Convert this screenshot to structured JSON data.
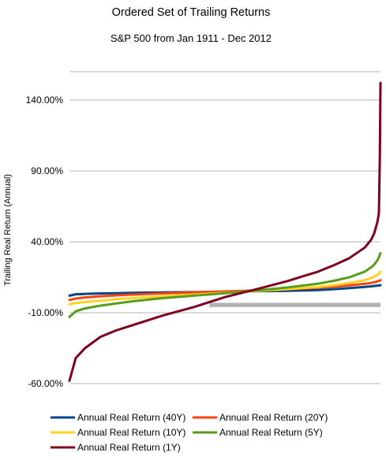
{
  "chart_data": {
    "type": "line",
    "title": "Ordered Set of Trailing Returns",
    "subtitle": "S&P 500 from Jan 1911 - Dec 2012",
    "xlabel": "",
    "ylabel": "Trailing Real Return (Annual)",
    "ylim": [
      -60,
      160
    ],
    "yticks": [
      -60,
      -10,
      40,
      90,
      140
    ],
    "ytick_labels": [
      "-60.00%",
      "-10.00%",
      "40.00%",
      "90.00%",
      "140.00%"
    ],
    "grid": true,
    "legend_position": "bottom",
    "highlight_band": [
      -6,
      -3
    ],
    "band_color": "#b3b3b3",
    "x": [
      0,
      2,
      5,
      10,
      15,
      20,
      30,
      40,
      50,
      60,
      70,
      80,
      85,
      90,
      95,
      97,
      98,
      99,
      99.5,
      99.8,
      100
    ],
    "series": [
      {
        "name": "Annual Real Return (40Y)",
        "color": "#004586",
        "values": [
          2,
          3,
          3.3,
          3.6,
          3.8,
          4,
          4.3,
          4.5,
          4.8,
          5.1,
          5.4,
          6,
          6.6,
          7.4,
          8.2,
          8.6,
          8.9,
          9.1,
          9.2,
          9.3,
          9.4
        ]
      },
      {
        "name": "Annual Real Return (20Y)",
        "color": "#ff420e",
        "values": [
          -1,
          0,
          0.8,
          1.6,
          2.2,
          2.8,
          3.6,
          4.3,
          5,
          5.7,
          6.5,
          7.6,
          8.4,
          9.3,
          10.4,
          11,
          11.5,
          12,
          12.4,
          12.7,
          13
        ]
      },
      {
        "name": "Annual Real Return (10Y)",
        "color": "#ffd320",
        "values": [
          -4,
          -3.2,
          -2.5,
          -1.5,
          -0.5,
          0.3,
          1.6,
          2.8,
          4,
          5.3,
          6.6,
          8.2,
          9.4,
          11,
          13,
          14.4,
          15.5,
          16.6,
          17.5,
          18.3,
          19
        ]
      },
      {
        "name": "Annual Real Return (5Y)",
        "color": "#579d1c",
        "values": [
          -13,
          -9,
          -7,
          -5,
          -3.5,
          -2,
          0.3,
          2,
          3.8,
          5.6,
          7.8,
          10.5,
          12.5,
          15,
          19,
          22,
          24,
          27,
          29,
          31,
          32
        ]
      },
      {
        "name": "Annual Real Return (1Y)",
        "color": "#7e0021",
        "values": [
          -58,
          -42,
          -35,
          -27,
          -22.5,
          -19,
          -12,
          -6,
          1,
          6.5,
          12.3,
          19,
          23.5,
          28.5,
          36,
          41.5,
          46,
          54,
          60,
          100,
          152
        ]
      }
    ]
  }
}
